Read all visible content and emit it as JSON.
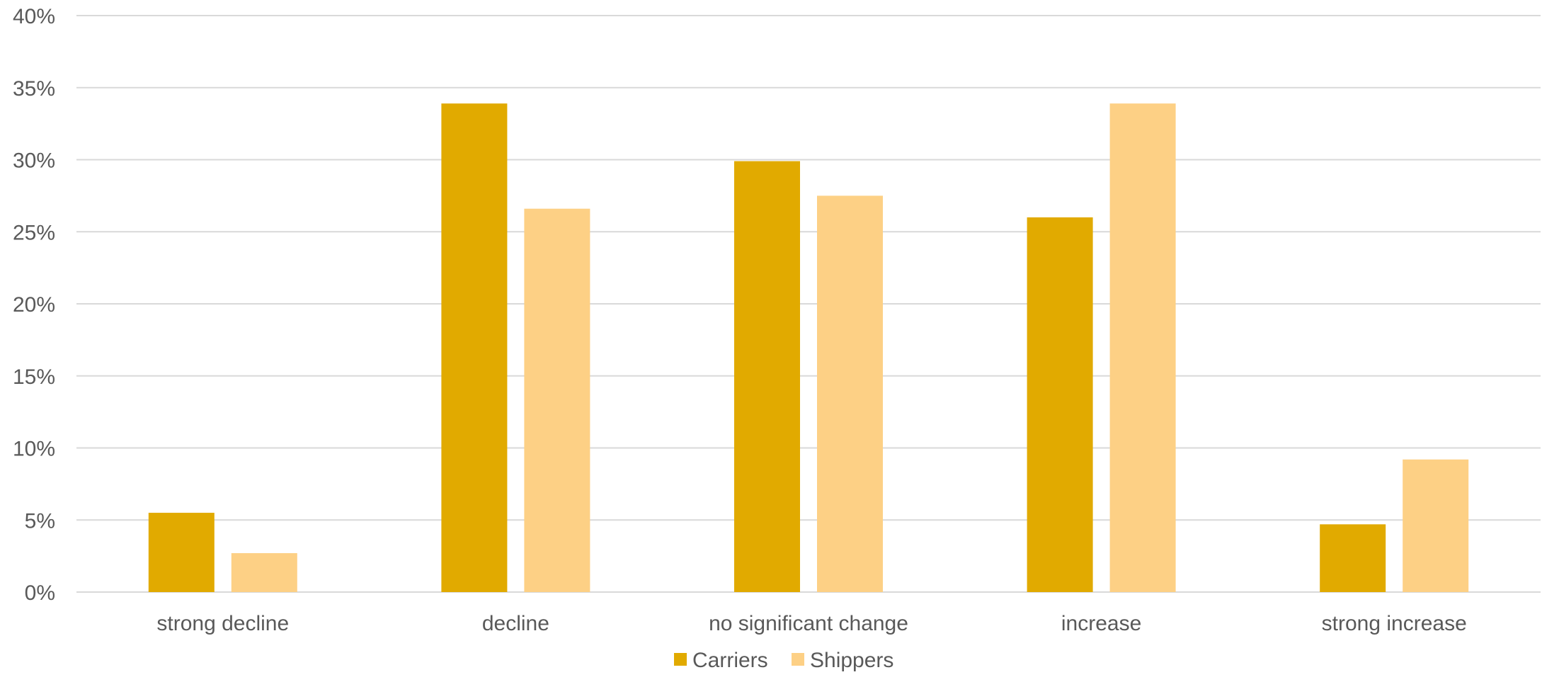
{
  "chart_data": {
    "type": "bar",
    "title": "",
    "xlabel": "",
    "ylabel": "",
    "categories": [
      "strong decline",
      "decline",
      "no significant change",
      "increase",
      "strong increase"
    ],
    "series": [
      {
        "name": "Carriers",
        "color": "#E1AA00",
        "values": [
          5.5,
          33.9,
          29.9,
          26.0,
          4.7
        ]
      },
      {
        "name": "Shippers",
        "color": "#FDD085",
        "values": [
          2.7,
          26.6,
          27.5,
          33.9,
          9.2
        ]
      }
    ],
    "ylim": [
      0,
      40
    ],
    "yticks": [
      0,
      5,
      10,
      15,
      20,
      25,
      30,
      35,
      40
    ],
    "ytick_labels": [
      "0%",
      "5%",
      "10%",
      "15%",
      "20%",
      "25%",
      "30%",
      "35%",
      "40%"
    ],
    "grid": true,
    "legend_position": "bottom",
    "colors": {
      "gridline": "#D9D9D9",
      "text": "#595959"
    }
  }
}
